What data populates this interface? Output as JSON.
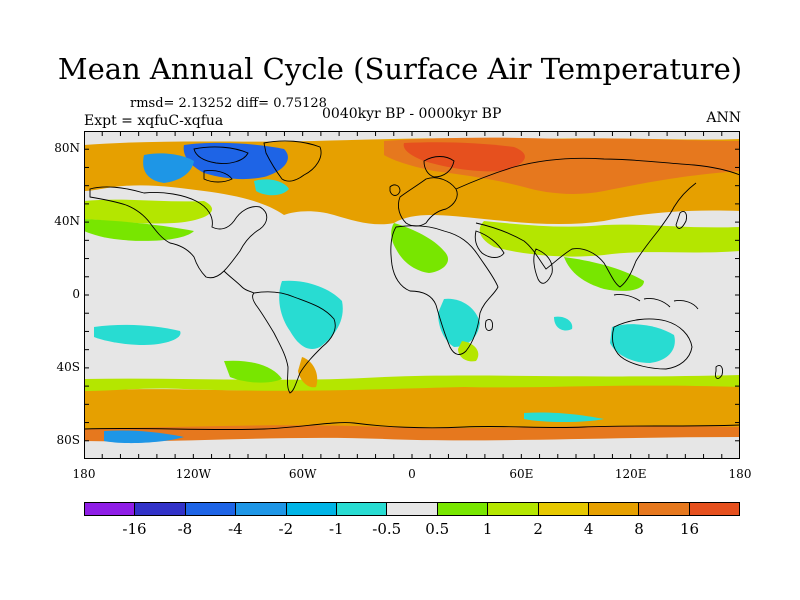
{
  "title": "Mean Annual Cycle (Surface Air Temperature)",
  "stats": "rmsd= 2.13252 diff= 0.75128",
  "expt": "Expt = xqfuC-xqfua",
  "period": "0040kyr BP - 0000kyr BP",
  "season": "ANN",
  "lat_labels": [
    "80N",
    "40N",
    "0",
    "40S",
    "80S"
  ],
  "lat_values": [
    80,
    40,
    0,
    -40,
    -80
  ],
  "lon_labels": [
    "180",
    "120W",
    "60W",
    "0",
    "60E",
    "120E",
    "180"
  ],
  "lon_values": [
    -180,
    -120,
    -60,
    0,
    60,
    120,
    180
  ],
  "colorbar": {
    "colors": [
      "#8f1ee6",
      "#3232c8",
      "#1e64e6",
      "#1e96e6",
      "#00b4e6",
      "#28dcd2",
      "#e6e6e6",
      "#78e600",
      "#b4e600",
      "#e6c800",
      "#e6a000",
      "#e6781e",
      "#e6501e"
    ],
    "labels": [
      "-16",
      "-8",
      "-4",
      "-2",
      "-1",
      "-0.5",
      "0.5",
      "1",
      "2",
      "4",
      "8",
      "16"
    ]
  },
  "colors": {
    "neutral": "#e6e6e6",
    "coast": "#000000"
  }
}
